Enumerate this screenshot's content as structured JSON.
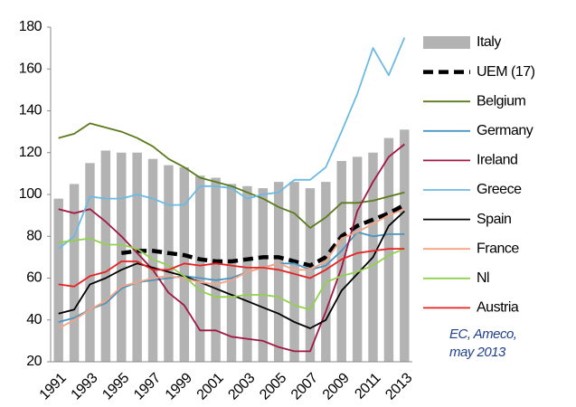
{
  "chart_data": {
    "type": "combo",
    "categories": [
      "1991",
      null,
      "1993",
      null,
      "1995",
      null,
      "1997",
      null,
      "1999",
      null,
      "2001",
      null,
      "2003",
      null,
      "2005",
      null,
      "2007",
      null,
      "2009",
      null,
      "2011",
      null,
      "2013"
    ],
    "ylim": [
      20,
      180
    ],
    "yticks": [
      20,
      40,
      60,
      80,
      100,
      120,
      140,
      160,
      180
    ],
    "grid": false,
    "legend": "right",
    "annotations": [
      "EC, Ameco,",
      "may 2013"
    ],
    "series": [
      {
        "name": "Italy",
        "type": "bar",
        "color": "#b3b3b3",
        "values": [
          98,
          105,
          115,
          121,
          120,
          120,
          117,
          114,
          113,
          109,
          108,
          105,
          104,
          103,
          106,
          106,
          103,
          106,
          116,
          118,
          120,
          127,
          131
        ]
      },
      {
        "name": "UEM (17)",
        "type": "line",
        "style": "dashed",
        "color": "#000000",
        "values": [
          null,
          null,
          null,
          null,
          72,
          73,
          73,
          72,
          71,
          69,
          68,
          68,
          69,
          70,
          70,
          68,
          66,
          70,
          80,
          85,
          88,
          91,
          95
        ]
      },
      {
        "name": "Belgium",
        "type": "line",
        "color": "#5b7a1c",
        "values": [
          127,
          129,
          134,
          132,
          130,
          127,
          123,
          117,
          113,
          108,
          106,
          104,
          101,
          98,
          94,
          91,
          84,
          89,
          96,
          96,
          97,
          99,
          101
        ]
      },
      {
        "name": "Germany",
        "type": "line",
        "color": "#4a96c0",
        "values": [
          39,
          41,
          45,
          48,
          55,
          58,
          59,
          60,
          61,
          60,
          59,
          60,
          63,
          65,
          67,
          67,
          64,
          66,
          73,
          82,
          80,
          81,
          81
        ]
      },
      {
        "name": "Ireland",
        "type": "line",
        "color": "#a11842",
        "values": [
          93,
          91,
          93,
          87,
          80,
          72,
          64,
          53,
          47,
          35,
          35,
          32,
          31,
          30,
          27,
          25,
          25,
          44,
          65,
          92,
          106,
          118,
          124
        ]
      },
      {
        "name": "Greece",
        "type": "line",
        "color": "#6cb9e2",
        "values": [
          74,
          80,
          99,
          98,
          98,
          100,
          98,
          95,
          95,
          104,
          104,
          103,
          98,
          100,
          101,
          107,
          107,
          113,
          130,
          148,
          170,
          157,
          175
        ]
      },
      {
        "name": "Spain",
        "type": "line",
        "color": "#000000",
        "values": [
          43,
          45,
          57,
          60,
          64,
          67,
          65,
          63,
          61,
          58,
          55,
          52,
          49,
          46,
          43,
          39,
          36,
          40,
          54,
          62,
          70,
          85,
          92
        ]
      },
      {
        "name": "France",
        "type": "line",
        "color": "#f4a384",
        "values": [
          36,
          40,
          45,
          49,
          56,
          58,
          60,
          61,
          60,
          58,
          57,
          59,
          63,
          65,
          67,
          64,
          64,
          68,
          79,
          82,
          86,
          90,
          93
        ]
      },
      {
        "name": "Nl",
        "type": "line",
        "color": "#92d050",
        "values": [
          77,
          78,
          79,
          76,
          76,
          74,
          69,
          66,
          61,
          54,
          51,
          51,
          52,
          52,
          51,
          47,
          45,
          58,
          61,
          63,
          66,
          71,
          74
        ]
      },
      {
        "name": "Austria",
        "type": "line",
        "color": "#e82222",
        "values": [
          57,
          56,
          61,
          63,
          68,
          68,
          64,
          64,
          67,
          66,
          67,
          66,
          65,
          65,
          64,
          62,
          60,
          64,
          69,
          72,
          73,
          74,
          74
        ]
      }
    ]
  }
}
